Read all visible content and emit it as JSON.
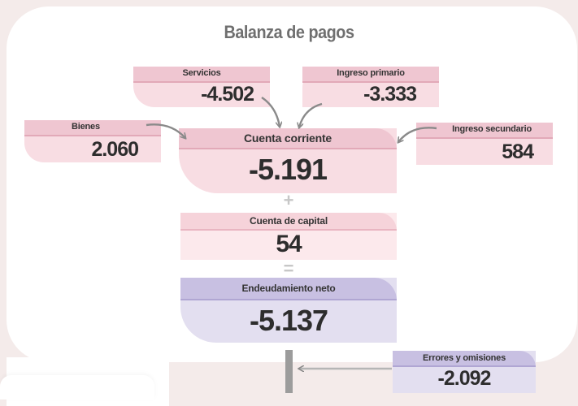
{
  "title": "Balanza de pagos",
  "servicios": {
    "label": "Servicios",
    "value": "-4.502"
  },
  "ingreso_primario": {
    "label": "Ingreso primario",
    "value": "-3.333"
  },
  "bienes": {
    "label": "Bienes",
    "value": "2.060"
  },
  "ingreso_secundario": {
    "label": "Ingreso secundario",
    "value": "584"
  },
  "cuenta_corriente": {
    "label": "Cuenta corriente",
    "value": "-5.191"
  },
  "cuenta_capital": {
    "label": "Cuenta de capital",
    "value": "54"
  },
  "endeudamiento": {
    "label": "Endeudamiento neto",
    "value": "-5.137"
  },
  "errores": {
    "label": "Errores y omisiones",
    "value": "-2.092"
  },
  "ops": {
    "plus": "+",
    "equals": "="
  },
  "colors": {
    "pink": "#f8dde3",
    "pink_header": "#efc6d1",
    "lavender": "#e3dff0",
    "lavender_header": "#c8c0e2",
    "arrow": "#8a8a8a"
  }
}
